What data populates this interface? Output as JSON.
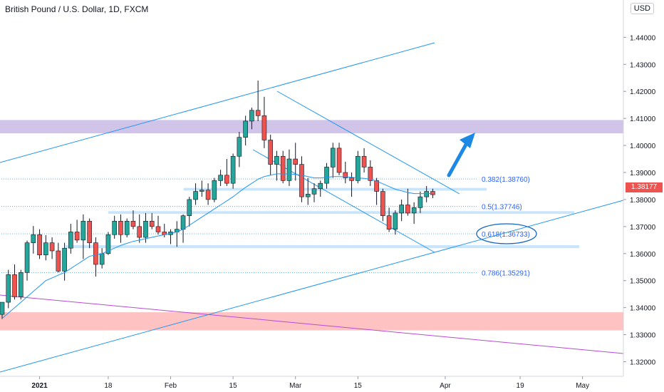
{
  "header": {
    "title": "British Pound / U.S. Dollar, 1D, FXCM",
    "currency_button": "USD"
  },
  "last_price_label": "1.38177",
  "colors": {
    "up": "#26a69a",
    "down": "#ef5350",
    "ma": "#2196f3",
    "channel": "#2196f3",
    "resistance_zone": "#d1c4e9",
    "support_zone": "#ffc2c2",
    "sr_zone": "#bbdefb",
    "trendline": "#b84bd6",
    "last_price": "#ef5350"
  },
  "chart_data": {
    "type": "candlestick",
    "symbol": "GBPUSD",
    "ylim": [
      1.3146,
      1.4538
    ],
    "y_ticks": [
      "1.44000",
      "1.43000",
      "1.42000",
      "1.41000",
      "1.40000",
      "1.39000",
      "1.38000",
      "1.37000",
      "1.36000",
      "1.35000",
      "1.34000",
      "1.33000",
      "1.32000"
    ],
    "y_partial_tick": "1.4",
    "x_ticks": [
      {
        "label": "2021",
        "bar": 6
      },
      {
        "label": "18",
        "bar": 17
      },
      {
        "label": "Feb",
        "bar": 27
      },
      {
        "label": "15",
        "bar": 37
      },
      {
        "label": "Mar",
        "bar": 47
      },
      {
        "label": "15",
        "bar": 57
      },
      {
        "label": "Apr",
        "bar": 71
      },
      {
        "label": "19",
        "bar": 83
      },
      {
        "label": "May",
        "bar": 93
      }
    ],
    "candles": [
      [
        1.3375,
        1.342,
        1.3358,
        1.342
      ],
      [
        1.342,
        1.354,
        1.3398,
        1.3522
      ],
      [
        1.3522,
        1.356,
        1.343,
        1.344
      ],
      [
        1.344,
        1.354,
        1.343,
        1.353
      ],
      [
        1.353,
        1.3648,
        1.35,
        1.364
      ],
      [
        1.364,
        1.3702,
        1.36,
        1.367
      ],
      [
        1.367,
        1.369,
        1.358,
        1.3595
      ],
      [
        1.3595,
        1.3668,
        1.3575,
        1.364
      ],
      [
        1.364,
        1.366,
        1.358,
        1.361
      ],
      [
        1.361,
        1.364,
        1.353,
        1.3535
      ],
      [
        1.3535,
        1.364,
        1.35,
        1.362
      ],
      [
        1.362,
        1.371,
        1.36,
        1.368
      ],
      [
        1.368,
        1.3725,
        1.364,
        1.365
      ],
      [
        1.365,
        1.3745,
        1.358,
        1.372
      ],
      [
        1.372,
        1.373,
        1.362,
        1.364
      ],
      [
        1.364,
        1.366,
        1.3515,
        1.356
      ],
      [
        1.356,
        1.362,
        1.3545,
        1.36
      ],
      [
        1.36,
        1.368,
        1.3595,
        1.367
      ],
      [
        1.367,
        1.374,
        1.3655,
        1.372
      ],
      [
        1.372,
        1.3745,
        1.364,
        1.367
      ],
      [
        1.367,
        1.373,
        1.366,
        1.372
      ],
      [
        1.372,
        1.376,
        1.369,
        1.37
      ],
      [
        1.37,
        1.3745,
        1.364,
        1.366
      ],
      [
        1.366,
        1.375,
        1.364,
        1.372
      ],
      [
        1.372,
        1.375,
        1.369,
        1.37
      ],
      [
        1.37,
        1.374,
        1.367,
        1.368
      ],
      [
        1.368,
        1.371,
        1.366,
        1.367
      ],
      [
        1.367,
        1.369,
        1.3635,
        1.368
      ],
      [
        1.368,
        1.372,
        1.3625,
        1.369
      ],
      [
        1.369,
        1.3745,
        1.364,
        1.374
      ],
      [
        1.374,
        1.381,
        1.37,
        1.38
      ],
      [
        1.38,
        1.386,
        1.378,
        1.383
      ],
      [
        1.383,
        1.387,
        1.381,
        1.3835
      ],
      [
        1.3835,
        1.386,
        1.378,
        1.38
      ],
      [
        1.38,
        1.388,
        1.379,
        1.387
      ],
      [
        1.387,
        1.391,
        1.385,
        1.389
      ],
      [
        1.389,
        1.395,
        1.385,
        1.386
      ],
      [
        1.386,
        1.397,
        1.384,
        1.396
      ],
      [
        1.396,
        1.405,
        1.392,
        1.403
      ],
      [
        1.403,
        1.411,
        1.4,
        1.409
      ],
      [
        1.409,
        1.414,
        1.406,
        1.413
      ],
      [
        1.413,
        1.424,
        1.409,
        1.411
      ],
      [
        1.411,
        1.418,
        1.399,
        1.402
      ],
      [
        1.402,
        1.404,
        1.389,
        1.393
      ],
      [
        1.393,
        1.398,
        1.387,
        1.396
      ],
      [
        1.396,
        1.398,
        1.386,
        1.387
      ],
      [
        1.387,
        1.3985,
        1.385,
        1.395
      ],
      [
        1.395,
        1.401,
        1.387,
        1.393
      ],
      [
        1.393,
        1.396,
        1.379,
        1.381
      ],
      [
        1.381,
        1.388,
        1.378,
        1.382
      ],
      [
        1.382,
        1.386,
        1.379,
        1.384
      ],
      [
        1.384,
        1.387,
        1.381,
        1.386
      ],
      [
        1.386,
        1.3935,
        1.384,
        1.392
      ],
      [
        1.392,
        1.401,
        1.388,
        1.399
      ],
      [
        1.399,
        1.401,
        1.389,
        1.39
      ],
      [
        1.39,
        1.394,
        1.386,
        1.388
      ],
      [
        1.388,
        1.39,
        1.381,
        1.387
      ],
      [
        1.387,
        1.398,
        1.386,
        1.396
      ],
      [
        1.396,
        1.399,
        1.39,
        1.392
      ],
      [
        1.392,
        1.3945,
        1.385,
        1.387
      ],
      [
        1.387,
        1.388,
        1.378,
        1.383
      ],
      [
        1.383,
        1.384,
        1.372,
        1.374
      ],
      [
        1.374,
        1.377,
        1.368,
        1.369
      ],
      [
        1.369,
        1.376,
        1.367,
        1.375
      ],
      [
        1.375,
        1.38,
        1.372,
        1.378
      ],
      [
        1.378,
        1.384,
        1.374,
        1.375
      ],
      [
        1.375,
        1.379,
        1.371,
        1.377
      ],
      [
        1.377,
        1.383,
        1.375,
        1.381
      ],
      [
        1.381,
        1.385,
        1.379,
        1.383
      ],
      [
        1.383,
        1.384,
        1.3805,
        1.3818
      ]
    ],
    "moving_average": [
      1.336,
      1.338,
      1.34,
      1.342,
      1.344,
      1.346,
      1.348,
      1.35,
      1.351,
      1.352,
      1.353,
      1.3545,
      1.356,
      1.3575,
      1.359,
      1.3595,
      1.36,
      1.361,
      1.362,
      1.363,
      1.3638,
      1.3645,
      1.365,
      1.3655,
      1.366,
      1.3665,
      1.367,
      1.3675,
      1.368,
      1.369,
      1.3705,
      1.372,
      1.3735,
      1.375,
      1.3765,
      1.378,
      1.3795,
      1.381,
      1.3828,
      1.3845,
      1.386,
      1.3875,
      1.3885,
      1.389,
      1.3895,
      1.3895,
      1.3895,
      1.3893,
      1.389,
      1.3885,
      1.388,
      1.388,
      1.3882,
      1.3885,
      1.3885,
      1.3884,
      1.3882,
      1.388,
      1.3878,
      1.3875,
      1.3868,
      1.3858,
      1.3848,
      1.3838,
      1.3832,
      1.3826,
      1.3822,
      1.3822,
      1.3822,
      1.3822
    ],
    "fibonacci": [
      {
        "ratio_label": "0.382(1.38760)",
        "price": 1.3876
      },
      {
        "ratio_label": "0.5(1.37746)",
        "price": 1.37746
      },
      {
        "ratio_label": "0.618(1.36733)",
        "price": 1.36733
      },
      {
        "ratio_label": "0.786(1.35291)",
        "price": 1.35291
      }
    ],
    "zones": [
      {
        "kind": "resistance",
        "top": 1.4094,
        "bottom": 1.4045
      },
      {
        "kind": "support",
        "top": 1.3383,
        "bottom": 1.3316
      },
      {
        "kind": "sr",
        "top": 1.3843,
        "bottom": 1.3833
      },
      {
        "kind": "sr",
        "top": 1.3757,
        "bottom": 1.3747
      },
      {
        "kind": "sr",
        "top": 1.3631,
        "bottom": 1.362
      }
    ]
  }
}
